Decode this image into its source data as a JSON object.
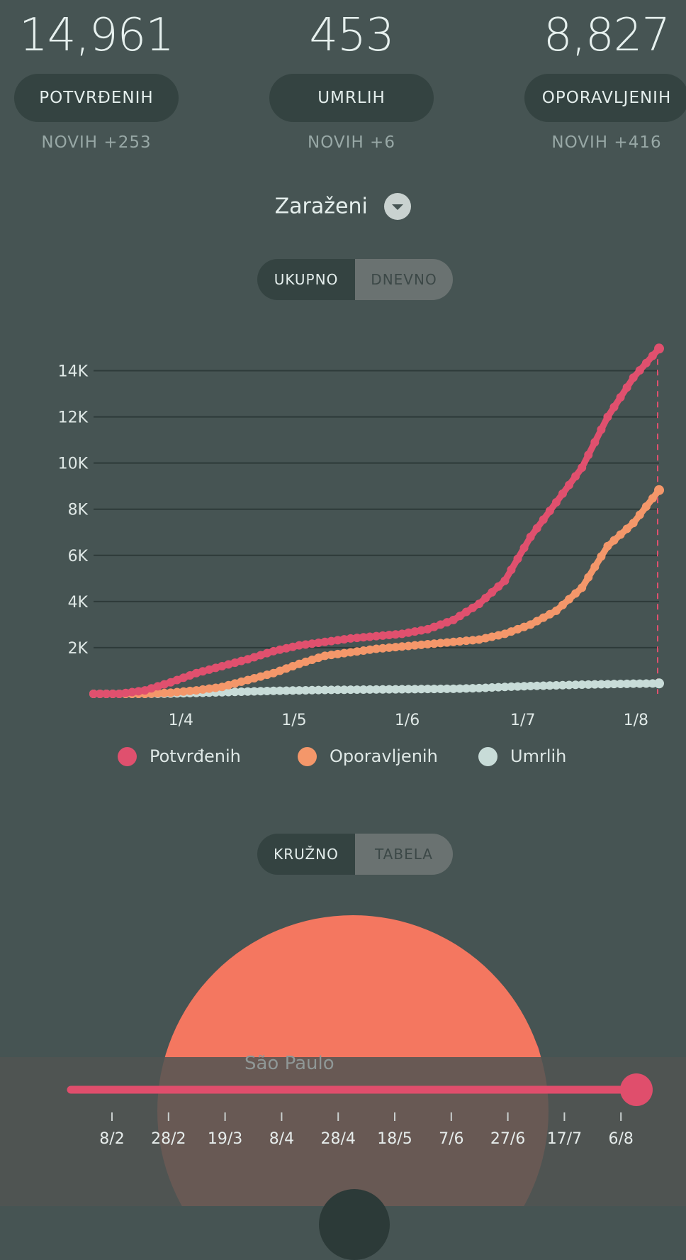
{
  "stats": [
    {
      "number": "14,961",
      "label": "POTVRĐENIH",
      "new": "NOVIH +253"
    },
    {
      "number": "453",
      "label": "UMRLIH",
      "new": "NOVIH +6"
    },
    {
      "number": "8,827",
      "label": "OPORAVLJENIH",
      "new": "NOVIH +416"
    }
  ],
  "metric_select": {
    "value": "Zaraženi",
    "icon": "chevron-down-icon"
  },
  "view_toggle": {
    "active": "UKUPNO",
    "inactive": "DNEVNO"
  },
  "chart_data": {
    "type": "line",
    "x_ticks": [
      "1/4",
      "1/5",
      "1/6",
      "1/7",
      "1/8"
    ],
    "y_ticks": [
      "2K",
      "4K",
      "6K",
      "8K",
      "10K",
      "12K",
      "14K"
    ],
    "ylim": [
      0,
      15000
    ],
    "grid": true,
    "legend_position": "bottom",
    "x": [
      "8/3",
      "15/3",
      "22/3",
      "29/3",
      "5/4",
      "12/4",
      "19/4",
      "26/4",
      "3/5",
      "10/5",
      "17/5",
      "24/5",
      "31/5",
      "7/6",
      "14/6",
      "21/6",
      "28/6",
      "5/7",
      "12/7",
      "19/7",
      "26/7",
      "2/8",
      "9/8"
    ],
    "series": [
      {
        "name": "Potvrđenih",
        "color": "#e0506e",
        "values": [
          0,
          0,
          150,
          500,
          900,
          1200,
          1500,
          1850,
          2100,
          2250,
          2400,
          2500,
          2600,
          2800,
          3200,
          3900,
          4900,
          6800,
          8300,
          9800,
          12000,
          13700,
          14961
        ]
      },
      {
        "name": "Oporavljenih",
        "color": "#f4976a",
        "values": [
          0,
          0,
          0,
          50,
          150,
          300,
          600,
          900,
          1300,
          1650,
          1800,
          1950,
          2050,
          2150,
          2250,
          2350,
          2600,
          3000,
          3600,
          4600,
          6400,
          7400,
          8827
        ]
      },
      {
        "name": "Umrlih",
        "color": "#c8dcd8",
        "values": [
          0,
          0,
          0,
          10,
          40,
          70,
          100,
          130,
          150,
          170,
          180,
          190,
          200,
          210,
          220,
          250,
          300,
          340,
          370,
          400,
          420,
          440,
          453
        ]
      }
    ]
  },
  "view_toggle2": {
    "active": "KRUŽNO",
    "inactive": "TABELA"
  },
  "bubble": {
    "city_label": "São Paulo"
  },
  "timeline": {
    "ticks": [
      "8/2",
      "28/2",
      "19/3",
      "8/4",
      "28/4",
      "18/5",
      "7/6",
      "27/6",
      "17/7",
      "6/8"
    ],
    "position": 1.0,
    "color": "#e04e6c"
  }
}
